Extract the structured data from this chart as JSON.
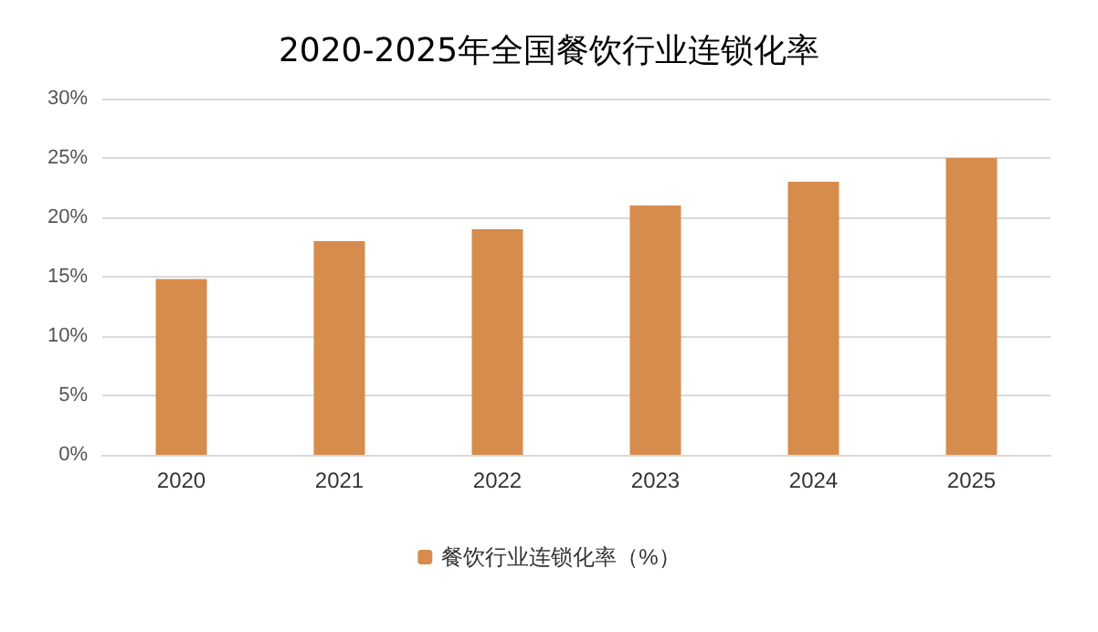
{
  "chart_data": {
    "type": "bar",
    "title": "2020-2025年全国餐饮行业连锁化率",
    "categories": [
      "2020",
      "2021",
      "2022",
      "2023",
      "2024",
      "2025"
    ],
    "series": [
      {
        "name": "餐饮行业连锁化率（%）",
        "color": "#d68c4c",
        "values": [
          14.8,
          18,
          19,
          21,
          23,
          25
        ]
      }
    ],
    "ylim": [
      0,
      30
    ],
    "yticks": [
      {
        "value": 0,
        "label": "0%"
      },
      {
        "value": 5,
        "label": "5%"
      },
      {
        "value": 10,
        "label": "10%"
      },
      {
        "value": 15,
        "label": "15%"
      },
      {
        "value": 20,
        "label": "20%"
      },
      {
        "value": 25,
        "label": "25%"
      },
      {
        "value": 30,
        "label": "30%"
      }
    ],
    "grid": "y",
    "legend": "bottom"
  }
}
